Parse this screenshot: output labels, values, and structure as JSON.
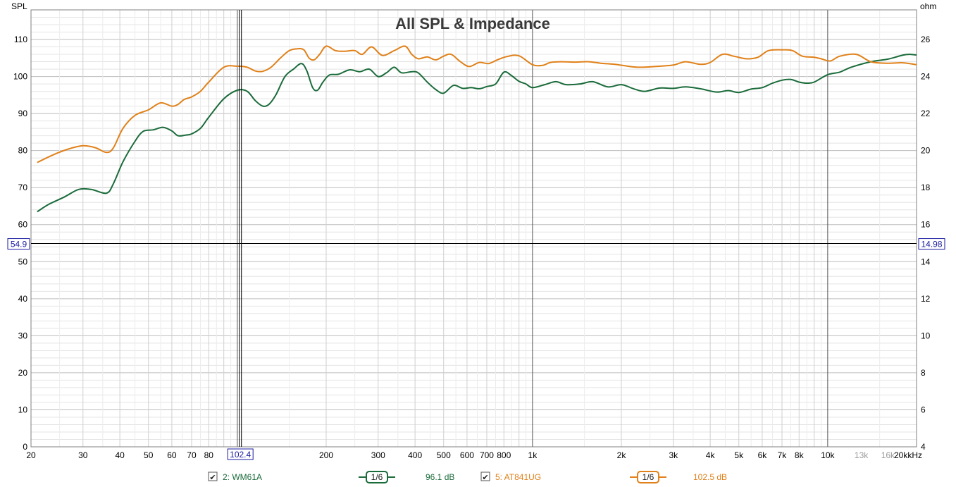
{
  "chart_data": {
    "type": "line",
    "title": "All SPL & Impedance",
    "y_left_label": "SPL",
    "y_right_label": "ohm",
    "x_unit_label": "kHz",
    "x_scale": "log",
    "xlim": [
      20,
      20000
    ],
    "ylim": [
      0,
      118
    ],
    "y_right_lim": [
      4,
      27.6
    ],
    "grid": true,
    "x_ticks": [
      {
        "v": 20,
        "label": "20"
      },
      {
        "v": 30,
        "label": "30"
      },
      {
        "v": 40,
        "label": "40"
      },
      {
        "v": 50,
        "label": "50"
      },
      {
        "v": 60,
        "label": "60"
      },
      {
        "v": 70,
        "label": "70"
      },
      {
        "v": 80,
        "label": "80"
      },
      {
        "v": 200,
        "label": "200"
      },
      {
        "v": 300,
        "label": "300"
      },
      {
        "v": 400,
        "label": "400"
      },
      {
        "v": 500,
        "label": "500"
      },
      {
        "v": 600,
        "label": "600"
      },
      {
        "v": 700,
        "label": "700"
      },
      {
        "v": 800,
        "label": "800"
      },
      {
        "v": 1000,
        "label": "1k"
      },
      {
        "v": 2000,
        "label": "2k"
      },
      {
        "v": 3000,
        "label": "3k"
      },
      {
        "v": 4000,
        "label": "4k"
      },
      {
        "v": 5000,
        "label": "5k"
      },
      {
        "v": 6000,
        "label": "6k"
      },
      {
        "v": 7000,
        "label": "7k"
      },
      {
        "v": 8000,
        "label": "8k"
      },
      {
        "v": 10000,
        "label": "10k"
      },
      {
        "v": 13000,
        "label": "13k",
        "grey": true
      },
      {
        "v": 16000,
        "label": "16k",
        "grey": true
      },
      {
        "v": 20000,
        "label": "20k"
      }
    ],
    "y_left_ticks": [
      0,
      10,
      20,
      30,
      40,
      50,
      60,
      70,
      80,
      90,
      100,
      110
    ],
    "y_right_ticks": [
      4,
      6,
      8,
      10,
      12,
      14,
      16,
      18,
      20,
      22,
      24,
      26
    ],
    "cursor": {
      "x": 102.4,
      "x_label": "102.4",
      "y": 54.9,
      "y_label": "54.9",
      "y_right_label": "14.98"
    },
    "series": [
      {
        "name": "2: WM61A",
        "color": "#1a6b3a",
        "smoothing": "1/6",
        "value_label": "96.1 dB",
        "points": [
          [
            21,
            63.5
          ],
          [
            23,
            65.5
          ],
          [
            26,
            67.5
          ],
          [
            29,
            69.5
          ],
          [
            32,
            69.5
          ],
          [
            36,
            68.5
          ],
          [
            38,
            71
          ],
          [
            41,
            77
          ],
          [
            45,
            82.5
          ],
          [
            48,
            85.2
          ],
          [
            52,
            85.6
          ],
          [
            56,
            86.3
          ],
          [
            60,
            85.3
          ],
          [
            63,
            84
          ],
          [
            67,
            84.2
          ],
          [
            70,
            84.5
          ],
          [
            75,
            86
          ],
          [
            80,
            89
          ],
          [
            90,
            94
          ],
          [
            100,
            96.3
          ],
          [
            108,
            96
          ],
          [
            115,
            93.5
          ],
          [
            122,
            92
          ],
          [
            128,
            92.5
          ],
          [
            135,
            95
          ],
          [
            145,
            100
          ],
          [
            155,
            102
          ],
          [
            165,
            103.5
          ],
          [
            172,
            101.5
          ],
          [
            180,
            97
          ],
          [
            187,
            96.3
          ],
          [
            195,
            98.5
          ],
          [
            205,
            100.4
          ],
          [
            220,
            100.6
          ],
          [
            240,
            101.8
          ],
          [
            260,
            101.3
          ],
          [
            280,
            102
          ],
          [
            300,
            100
          ],
          [
            320,
            101
          ],
          [
            340,
            102.5
          ],
          [
            360,
            101
          ],
          [
            390,
            101.3
          ],
          [
            410,
            101
          ],
          [
            440,
            98.5
          ],
          [
            470,
            96.5
          ],
          [
            500,
            95.5
          ],
          [
            540,
            97.6
          ],
          [
            580,
            96.8
          ],
          [
            620,
            97
          ],
          [
            660,
            96.7
          ],
          [
            700,
            97.3
          ],
          [
            750,
            98
          ],
          [
            800,
            101.2
          ],
          [
            850,
            100.2
          ],
          [
            900,
            98.7
          ],
          [
            950,
            98
          ],
          [
            1000,
            97
          ],
          [
            1100,
            97.8
          ],
          [
            1200,
            98.6
          ],
          [
            1300,
            97.8
          ],
          [
            1450,
            98
          ],
          [
            1600,
            98.6
          ],
          [
            1800,
            97.2
          ],
          [
            2000,
            97.8
          ],
          [
            2200,
            96.7
          ],
          [
            2400,
            96
          ],
          [
            2700,
            96.9
          ],
          [
            3000,
            96.8
          ],
          [
            3300,
            97.2
          ],
          [
            3700,
            96.7
          ],
          [
            4200,
            95.8
          ],
          [
            4600,
            96.2
          ],
          [
            5000,
            95.7
          ],
          [
            5500,
            96.6
          ],
          [
            6000,
            97
          ],
          [
            6500,
            98.2
          ],
          [
            7000,
            99
          ],
          [
            7500,
            99.2
          ],
          [
            8000,
            98.5
          ],
          [
            8500,
            98.2
          ],
          [
            9000,
            98.5
          ],
          [
            10000,
            100.5
          ],
          [
            11000,
            101.2
          ],
          [
            12000,
            102.5
          ],
          [
            14000,
            104
          ],
          [
            16000,
            104.7
          ],
          [
            18000,
            105.8
          ],
          [
            19000,
            106
          ],
          [
            20000,
            105.8
          ]
        ]
      },
      {
        "name": "5: AT841UG",
        "color": "#e0811a",
        "smoothing": "1/6",
        "value_label": "102.5 dB",
        "points": [
          [
            21,
            76.8
          ],
          [
            24,
            79
          ],
          [
            27,
            80.5
          ],
          [
            30,
            81.3
          ],
          [
            33,
            80.8
          ],
          [
            36,
            79.5
          ],
          [
            38,
            80.7
          ],
          [
            41,
            86
          ],
          [
            45,
            89.5
          ],
          [
            50,
            91
          ],
          [
            55,
            92.9
          ],
          [
            60,
            92
          ],
          [
            63,
            92.5
          ],
          [
            66,
            93.8
          ],
          [
            70,
            94.5
          ],
          [
            75,
            96
          ],
          [
            80,
            98.5
          ],
          [
            90,
            102.5
          ],
          [
            100,
            102.8
          ],
          [
            108,
            102.5
          ],
          [
            115,
            101.5
          ],
          [
            122,
            101.4
          ],
          [
            130,
            102.5
          ],
          [
            140,
            105
          ],
          [
            150,
            107
          ],
          [
            160,
            107.5
          ],
          [
            168,
            107.2
          ],
          [
            175,
            105
          ],
          [
            182,
            104.5
          ],
          [
            190,
            106
          ],
          [
            200,
            108.2
          ],
          [
            215,
            107
          ],
          [
            230,
            106.8
          ],
          [
            250,
            107
          ],
          [
            265,
            106
          ],
          [
            285,
            108
          ],
          [
            310,
            105.7
          ],
          [
            340,
            107
          ],
          [
            370,
            108.2
          ],
          [
            390,
            106
          ],
          [
            410,
            104.8
          ],
          [
            440,
            105.3
          ],
          [
            470,
            104.5
          ],
          [
            500,
            105.5
          ],
          [
            530,
            106
          ],
          [
            570,
            104
          ],
          [
            610,
            102.7
          ],
          [
            660,
            103.8
          ],
          [
            710,
            103.5
          ],
          [
            760,
            104.5
          ],
          [
            820,
            105.4
          ],
          [
            900,
            105.6
          ],
          [
            1000,
            103.2
          ],
          [
            1080,
            103
          ],
          [
            1150,
            103.8
          ],
          [
            1250,
            104
          ],
          [
            1400,
            103.9
          ],
          [
            1550,
            104
          ],
          [
            1700,
            103.6
          ],
          [
            1900,
            103.3
          ],
          [
            2100,
            102.8
          ],
          [
            2300,
            102.5
          ],
          [
            2600,
            102.7
          ],
          [
            3000,
            103.1
          ],
          [
            3300,
            104
          ],
          [
            3700,
            103.3
          ],
          [
            4000,
            103.8
          ],
          [
            4400,
            106
          ],
          [
            4800,
            105.5
          ],
          [
            5300,
            104.8
          ],
          [
            5800,
            105.2
          ],
          [
            6300,
            107
          ],
          [
            7000,
            107.2
          ],
          [
            7600,
            107
          ],
          [
            8200,
            105.5
          ],
          [
            9000,
            105.2
          ],
          [
            9500,
            104.8
          ],
          [
            10200,
            104.2
          ],
          [
            11000,
            105.5
          ],
          [
            12500,
            106
          ],
          [
            14000,
            104
          ],
          [
            16000,
            103.6
          ],
          [
            18000,
            103.7
          ],
          [
            20000,
            103.2
          ]
        ]
      }
    ]
  },
  "legend": {
    "items": [
      {
        "label": "2: WM61A",
        "checked": true,
        "smoothing": "1/6",
        "value": "96.1 dB",
        "color": "#1a6b3a"
      },
      {
        "label": "5: AT841UG",
        "checked": true,
        "smoothing": "1/6",
        "value": "102.5 dB",
        "color": "#e0811a"
      }
    ]
  }
}
